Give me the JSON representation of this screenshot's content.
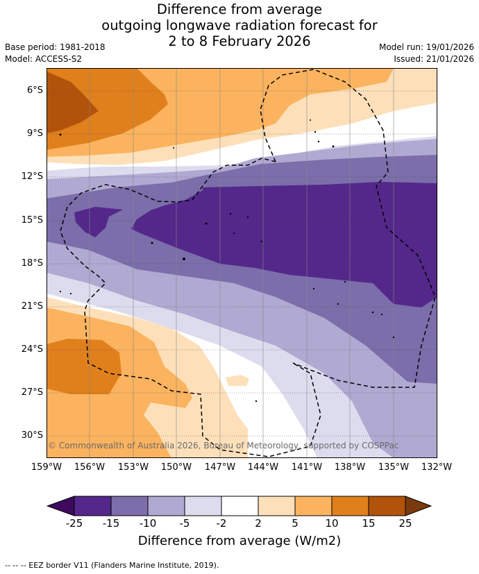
{
  "title_lines": [
    "Difference from average",
    "outgoing longwave radiation forecast for",
    "2 to 8 February 2026"
  ],
  "base_period": "Base period: 1981-2018",
  "model": "Model: ACCESS-S2",
  "model_run": "Model run: 19/01/2026",
  "issued": "Issued: 21/01/2026",
  "copyright": "© Commonwealth of Australia 2026, Bureau of Meteorology, supported by COSPPac",
  "lat_labels": [
    "6°S",
    "9°S",
    "12°S",
    "15°S",
    "18°S",
    "21°S",
    "24°S",
    "27°S",
    "30°S"
  ],
  "lon_labels": [
    "159°W",
    "156°W",
    "153°W",
    "150°W",
    "147°W",
    "144°W",
    "141°W",
    "138°W",
    "135°W",
    "132°W"
  ],
  "colorbar": {
    "ticks": [
      "-25",
      "-15",
      "-10",
      "-5",
      "-2",
      "2",
      "5",
      "10",
      "15",
      "25"
    ],
    "colors": [
      "#3d0a5e",
      "#54288a",
      "#7b6eaa",
      "#b0a9d2",
      "#dddcee",
      "#ffffff",
      "#fde0b9",
      "#fbb35f",
      "#e0801d",
      "#b2530c",
      "#7a3a0d"
    ],
    "title": "Difference from average (W/m2)"
  },
  "legend_note": "-- -- -- EEZ border V11 (Flanders Marine Institute, 2019)."
}
